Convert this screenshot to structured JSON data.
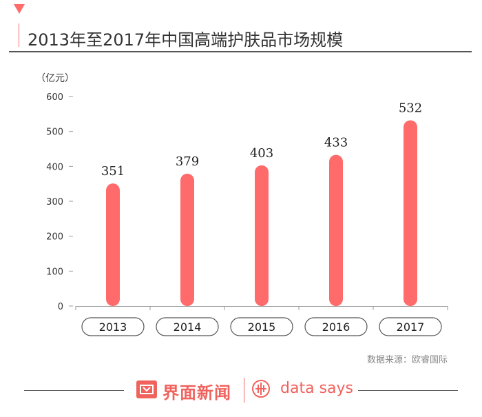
{
  "title": "2013年至2017年中国高端护肤品市场规模",
  "unit": "（亿元）",
  "source": "数据来源：欧睿国际",
  "footer": {
    "brand_cn": "界面新闻",
    "brand_en": "data says"
  },
  "colors": {
    "bar": "#ff6b6b",
    "accent": "#f0625d",
    "axis": "#999999"
  },
  "chart_data": {
    "type": "bar",
    "title": "2013年至2017年中国高端护肤品市场规模",
    "categories": [
      "2013",
      "2014",
      "2015",
      "2016",
      "2017"
    ],
    "values": [
      351,
      379,
      403,
      433,
      532
    ],
    "ylabel": "（亿元）",
    "ylim": [
      0,
      600
    ],
    "yticks": [
      0,
      100,
      200,
      300,
      400,
      500,
      600
    ],
    "grid": false
  }
}
